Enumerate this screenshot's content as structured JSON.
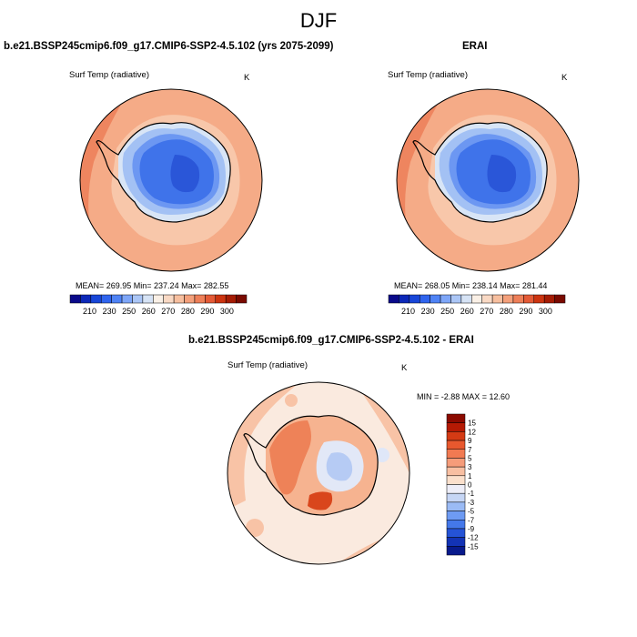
{
  "figure": {
    "title": "DJF",
    "panel_left_title": "b.e21.BSSP245cmip6.f09_g17.CMIP6-SSP2-4.5.102 (yrs 2075-2099)",
    "panel_right_title": "ERAI",
    "panel_diff_title": "b.e21.BSSP245cmip6.f09_g17.CMIP6-SSP2-4.5.102 - ERAI"
  },
  "chart_data": [
    {
      "type": "heatmap",
      "variable": "Surf Temp (radiative)",
      "units": "K",
      "stats": "MEAN= 269.95  Min= 237.24  Max= 282.55",
      "colorbar_ticks": [
        "210",
        "230",
        "250",
        "260",
        "270",
        "280",
        "290",
        "300"
      ],
      "colorbar_colors": [
        "#0a0a8a",
        "#0c28b8",
        "#1846d8",
        "#2f64ee",
        "#4f83f5",
        "#7ea6f8",
        "#abc6f6",
        "#d6e3f5",
        "#faf0e6",
        "#f9d9c4",
        "#f7bf9f",
        "#f4a07b",
        "#ee7f58",
        "#e45a36",
        "#cc3410",
        "#a51c04",
        "#7a0a00"
      ]
    },
    {
      "type": "heatmap",
      "variable": "Surf Temp (radiative)",
      "units": "K",
      "stats": "MEAN= 268.05  Min= 238.14  Max= 281.44",
      "colorbar_ticks": [
        "210",
        "230",
        "250",
        "260",
        "270",
        "280",
        "290",
        "300"
      ],
      "colorbar_colors": [
        "#0a0a8a",
        "#0c28b8",
        "#1846d8",
        "#2f64ee",
        "#4f83f5",
        "#7ea6f8",
        "#abc6f6",
        "#d6e3f5",
        "#faf0e6",
        "#f9d9c4",
        "#f7bf9f",
        "#f4a07b",
        "#ee7f58",
        "#e45a36",
        "#cc3410",
        "#a51c04",
        "#7a0a00"
      ]
    },
    {
      "type": "heatmap",
      "variable": "Surf Temp (radiative)",
      "units": "K",
      "stats": "MIN =  -2.88 MAX =  12.60",
      "colorbar_ticks": [
        "15",
        "12",
        "9",
        "7",
        "5",
        "3",
        "1",
        "0",
        "-1",
        "-3",
        "-5",
        "-7",
        "-9",
        "-12",
        "-15"
      ],
      "colorbar_colors": [
        "#8b0a00",
        "#b51a04",
        "#d43a14",
        "#e8582e",
        "#f17a52",
        "#f59c7a",
        "#f8bfa2",
        "#fbe0cc",
        "#eeeef8",
        "#c6d6f5",
        "#9bbbf5",
        "#6e9bf3",
        "#4478ea",
        "#2553d6",
        "#1333b5",
        "#081a8c"
      ]
    }
  ]
}
